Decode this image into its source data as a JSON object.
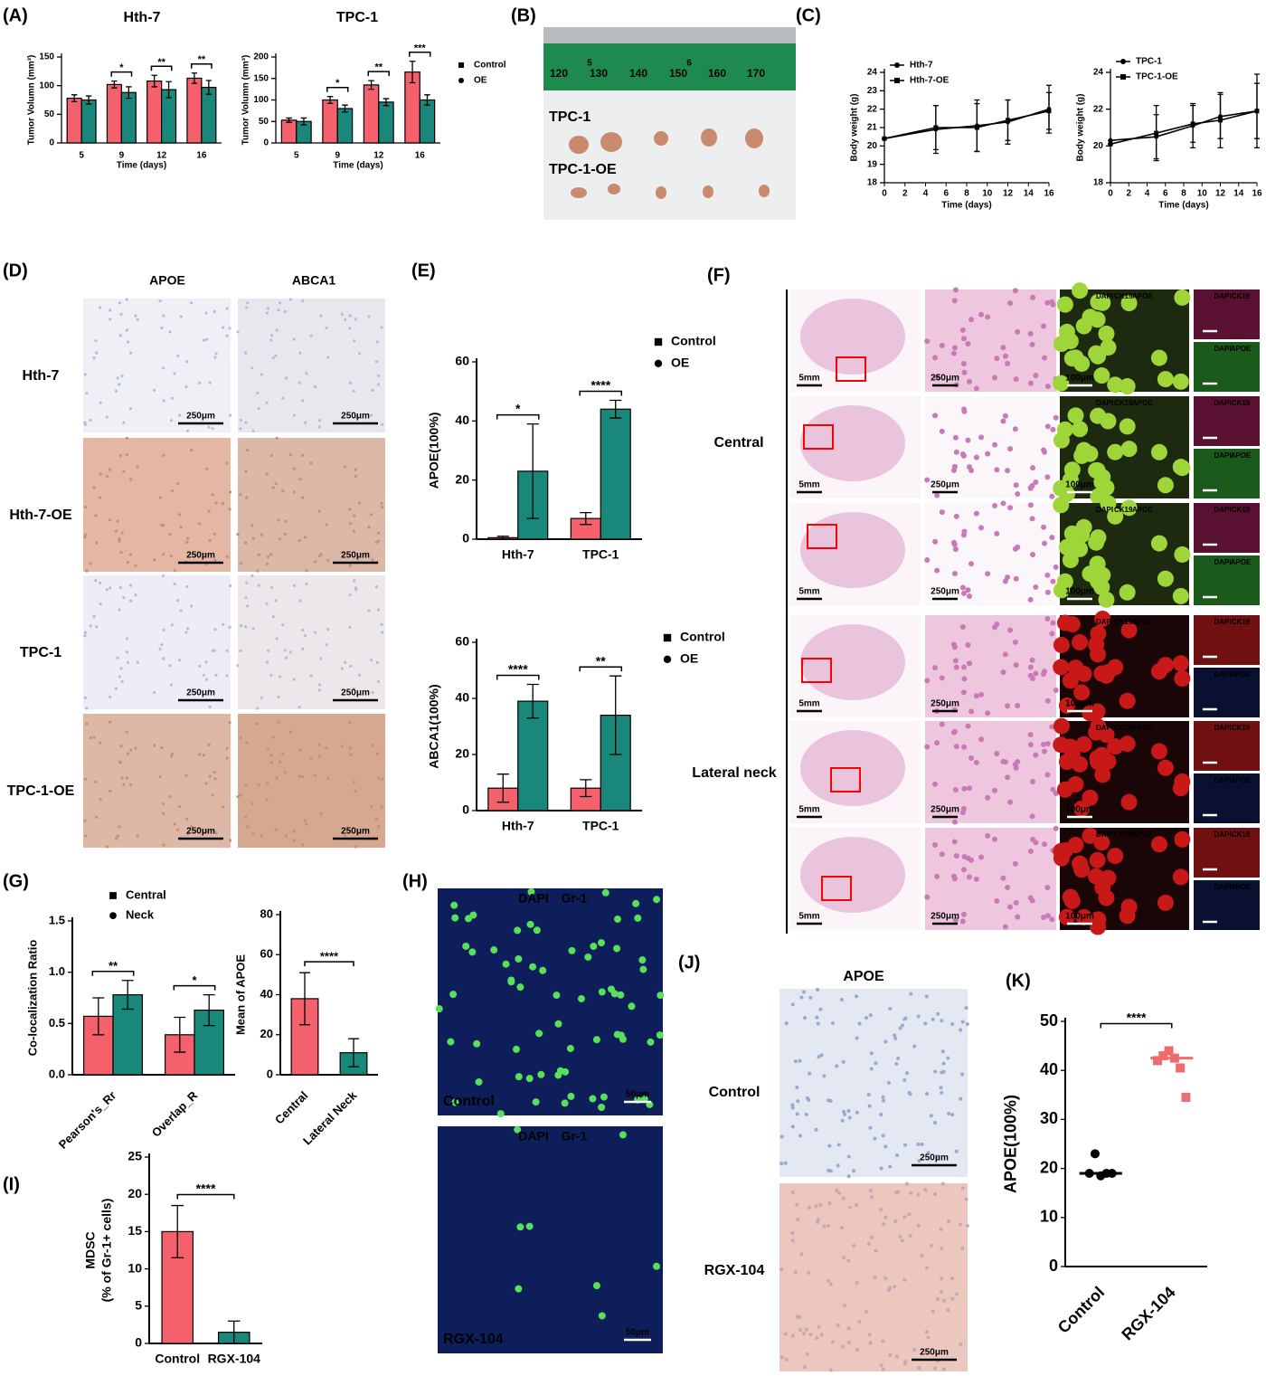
{
  "panel_labels": [
    "(A)",
    "(B)",
    "(C)",
    "(D)",
    "(E)",
    "(F)",
    "(G)",
    "(H)",
    "(I)",
    "(J)",
    "(K)"
  ],
  "B": {
    "ruler": [
      "120",
      "130",
      "140",
      "150",
      "160",
      "170"
    ],
    "ruler_marks": [
      "5",
      "6"
    ],
    "rows": [
      "TPC-1",
      "TPC-1-OE"
    ]
  },
  "D": {
    "columns": [
      "APOE",
      "ABCA1"
    ],
    "rows": [
      "Hth-7",
      "Hth-7-OE",
      "TPC-1",
      "TPC-1-OE"
    ],
    "scale": "250μm"
  },
  "F": {
    "groups": [
      "Central",
      "Lateral neck"
    ],
    "scales": [
      "5mm",
      "250μm",
      "100μm"
    ],
    "stains": [
      "DAPI",
      "CK19",
      "APOE"
    ]
  },
  "H": {
    "stains": [
      "DAPI",
      "Gr-1"
    ],
    "rows": [
      "Control",
      "RGX-104"
    ],
    "scale": "50μm"
  },
  "J": {
    "title": "APOE",
    "rows": [
      "Control",
      "RGX-104"
    ],
    "scale": "250μm"
  },
  "chart_data": [
    {
      "type": "bar",
      "title": "Hth-7",
      "xlabel": "Time (days)",
      "ylabel": "Tumor Volumn (mm³)",
      "categories": [
        "5",
        "9",
        "12",
        "16"
      ],
      "series": [
        {
          "color": "#f4606c",
          "values": [
            78,
            102,
            108,
            113
          ],
          "errors": [
            6,
            6,
            10,
            9
          ]
        },
        {
          "color": "#19877a",
          "values": [
            75,
            88,
            93,
            97
          ],
          "errors": [
            7,
            10,
            14,
            12
          ]
        }
      ],
      "ylim": [
        0,
        150
      ],
      "yticks": [
        0,
        50,
        100,
        150
      ],
      "annotations": [
        null,
        "*",
        "**",
        "**"
      ]
    },
    {
      "type": "bar",
      "title": "TPC-1",
      "xlabel": "Time (days)",
      "ylabel": "Tumor Volumn (mm³)",
      "categories": [
        "5",
        "9",
        "12",
        "16"
      ],
      "series": [
        {
          "name": "Control",
          "color": "#f4606c",
          "values": [
            53,
            100,
            135,
            165
          ],
          "errors": [
            5,
            8,
            10,
            25
          ]
        },
        {
          "name": "OE",
          "color": "#19877a",
          "values": [
            50,
            80,
            95,
            100
          ],
          "errors": [
            8,
            8,
            8,
            12
          ]
        }
      ],
      "ylim": [
        0,
        200
      ],
      "yticks": [
        0,
        50,
        100,
        150,
        200
      ],
      "annotations": [
        null,
        "*",
        "**",
        "***"
      ],
      "legend": "right"
    },
    {
      "type": "line",
      "xlabel": "Time (days)",
      "ylabel": "Body weight (g)",
      "x": [
        0,
        5,
        9,
        12,
        16
      ],
      "xlim": [
        0,
        16
      ],
      "xticks": [
        0,
        2,
        4,
        6,
        8,
        10,
        12,
        14,
        16
      ],
      "series": [
        {
          "name": "Hth-7",
          "color": "#000000",
          "values": [
            20.4,
            20.9,
            21.1,
            21.3,
            22.0
          ],
          "errors": [
            0,
            1.3,
            1.4,
            1.2,
            1.3
          ]
        },
        {
          "name": "Hth-7-OE",
          "color": "#000000",
          "values": [
            20.4,
            21.0,
            21.0,
            21.4,
            21.9
          ],
          "errors": [
            0,
            1.2,
            1.3,
            1.1,
            1.0
          ]
        }
      ],
      "ylim": [
        18,
        24
      ],
      "yticks": [
        18,
        19,
        20,
        21,
        22,
        23,
        24
      ],
      "legend": "top-left"
    },
    {
      "type": "line",
      "xlabel": "Time (days)",
      "ylabel": "Body weight (g)",
      "x": [
        0,
        5,
        9,
        12,
        16
      ],
      "xlim": [
        0,
        16
      ],
      "xticks": [
        0,
        2,
        4,
        6,
        8,
        10,
        12,
        14,
        16
      ],
      "series": [
        {
          "name": "TPC-1",
          "color": "#000000",
          "values": [
            20.3,
            20.5,
            21.1,
            21.6,
            21.9
          ],
          "errors": [
            0,
            1.2,
            1.2,
            1.2,
            1.5
          ]
        },
        {
          "name": "TPC-1-OE",
          "color": "#000000",
          "values": [
            20.1,
            20.7,
            21.2,
            21.4,
            21.9
          ],
          "errors": [
            0,
            1.5,
            1.0,
            1.5,
            2.0
          ]
        }
      ],
      "ylim": [
        18,
        24
      ],
      "yticks": [
        18,
        20,
        22,
        24
      ],
      "legend": "top-left"
    },
    {
      "type": "bar",
      "ylabel": "APOE(100%)",
      "categories": [
        "Hth-7",
        "TPC-1"
      ],
      "series": [
        {
          "name": "Control",
          "color": "#f4606c",
          "values": [
            0.5,
            7
          ],
          "errors": [
            0.5,
            2
          ]
        },
        {
          "name": "OE",
          "color": "#19877a",
          "values": [
            23,
            44
          ],
          "errors": [
            16,
            3
          ]
        }
      ],
      "ylim": [
        0,
        60
      ],
      "yticks": [
        0,
        20,
        40,
        60
      ],
      "annotations": [
        "*",
        "****"
      ],
      "legend": "right"
    },
    {
      "type": "bar",
      "ylabel": "ABCA1(100%)",
      "categories": [
        "Hth-7",
        "TPC-1"
      ],
      "series": [
        {
          "name": "Control",
          "color": "#f4606c",
          "values": [
            8,
            8
          ],
          "errors": [
            5,
            3
          ]
        },
        {
          "name": "OE",
          "color": "#19877a",
          "values": [
            39,
            34
          ],
          "errors": [
            6,
            14
          ]
        }
      ],
      "ylim": [
        0,
        60
      ],
      "yticks": [
        0,
        20,
        40,
        60
      ],
      "annotations": [
        "****",
        "**"
      ],
      "legend": "right"
    },
    {
      "type": "bar",
      "ylabel": "Co-localization Ratio",
      "categories": [
        "Pearson's_Rr",
        "Overlap_R"
      ],
      "series": [
        {
          "name": "Central",
          "color": "#f4606c",
          "values": [
            0.57,
            0.39
          ],
          "errors": [
            0.18,
            0.17
          ]
        },
        {
          "name": "Neck",
          "color": "#19877a",
          "values": [
            0.78,
            0.63
          ],
          "errors": [
            0.14,
            0.15
          ]
        }
      ],
      "ylim": [
        0,
        1.5
      ],
      "yticks": [
        {
          "value": 0,
          "label": "0.0"
        },
        0.5,
        {
          "value": 1,
          "label": "1.0"
        },
        1.5
      ],
      "annotations": [
        "**",
        "*"
      ],
      "legend": "top"
    },
    {
      "type": "bar",
      "ylabel": "Mean of APOE",
      "categories": [
        "Central",
        "Lateral Neck"
      ],
      "values": [
        38,
        11
      ],
      "errors": [
        13,
        7
      ],
      "colors": [
        "#f4606c",
        "#19877a"
      ],
      "ylim": [
        0,
        80
      ],
      "yticks": [
        0,
        20,
        40,
        60,
        80
      ],
      "annotations": [
        "****"
      ]
    },
    {
      "type": "bar",
      "ylabel": [
        "MDSC",
        "(% of Gr-1+ cells)"
      ],
      "categories": [
        "Control",
        "RGX-104"
      ],
      "values": [
        15,
        1.5
      ],
      "errors": [
        3.5,
        1.5
      ],
      "colors": [
        "#f4606c",
        "#19877a"
      ],
      "ylim": [
        0,
        25
      ],
      "yticks": [
        0,
        5,
        10,
        15,
        20,
        25
      ],
      "annotations": [
        "****"
      ]
    },
    {
      "type": "strip",
      "ylabel": "APOE(100%)",
      "categories": [
        "Control",
        "RGX-104"
      ],
      "points": [
        [
          19,
          23,
          18.5,
          19,
          19
        ],
        [
          42,
          43,
          44,
          42.5,
          40.5,
          34.5
        ]
      ],
      "medians": [
        19,
        42.5
      ],
      "colors": [
        "#000000",
        "#f06c6c"
      ],
      "ylim": [
        0,
        50
      ],
      "yticks": [
        0,
        10,
        20,
        30,
        40,
        50
      ],
      "annotations": [
        "****"
      ]
    }
  ]
}
